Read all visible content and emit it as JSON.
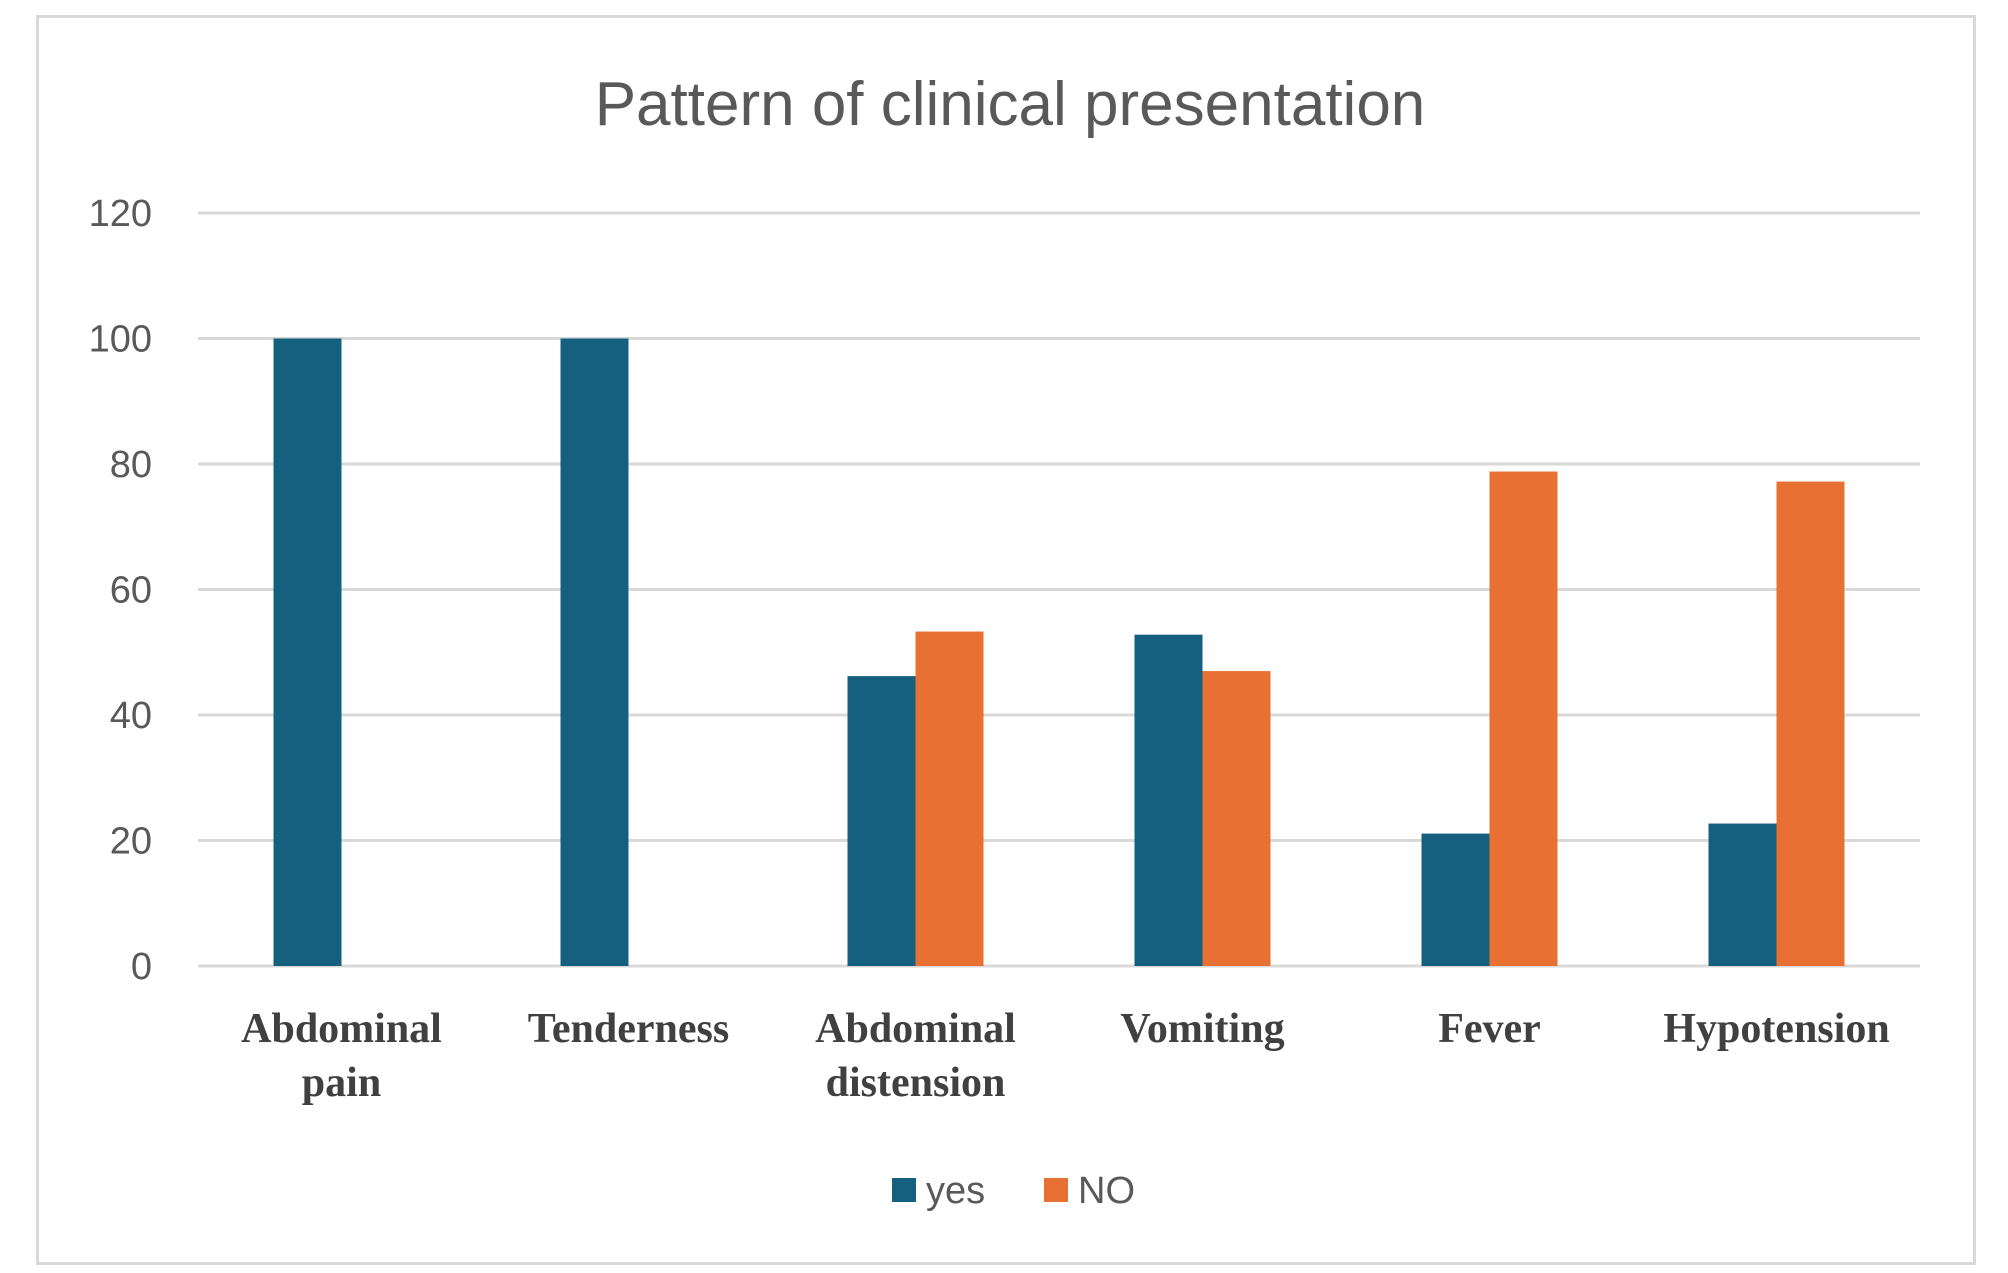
{
  "chart_data": {
    "type": "bar",
    "title": "Pattern of clinical presentation",
    "categories": [
      [
        "Abdominal",
        "pain"
      ],
      [
        "Tenderness"
      ],
      [
        "Abdominal",
        "distension"
      ],
      [
        "Vomiting"
      ],
      [
        "Fever"
      ],
      [
        "Hypotension"
      ]
    ],
    "series": [
      {
        "name": "yes",
        "color": "#15607e",
        "values": [
          100,
          100,
          46.2,
          52.8,
          21.1,
          22.7
        ]
      },
      {
        "name": "NO",
        "color": "#e87033",
        "values": [
          null,
          null,
          53.3,
          47.0,
          78.8,
          77.2
        ]
      }
    ],
    "ylim": [
      0,
      120
    ],
    "yticks": [
      0,
      20,
      40,
      60,
      80,
      100,
      120
    ],
    "grid": true,
    "legend": "bottom"
  }
}
